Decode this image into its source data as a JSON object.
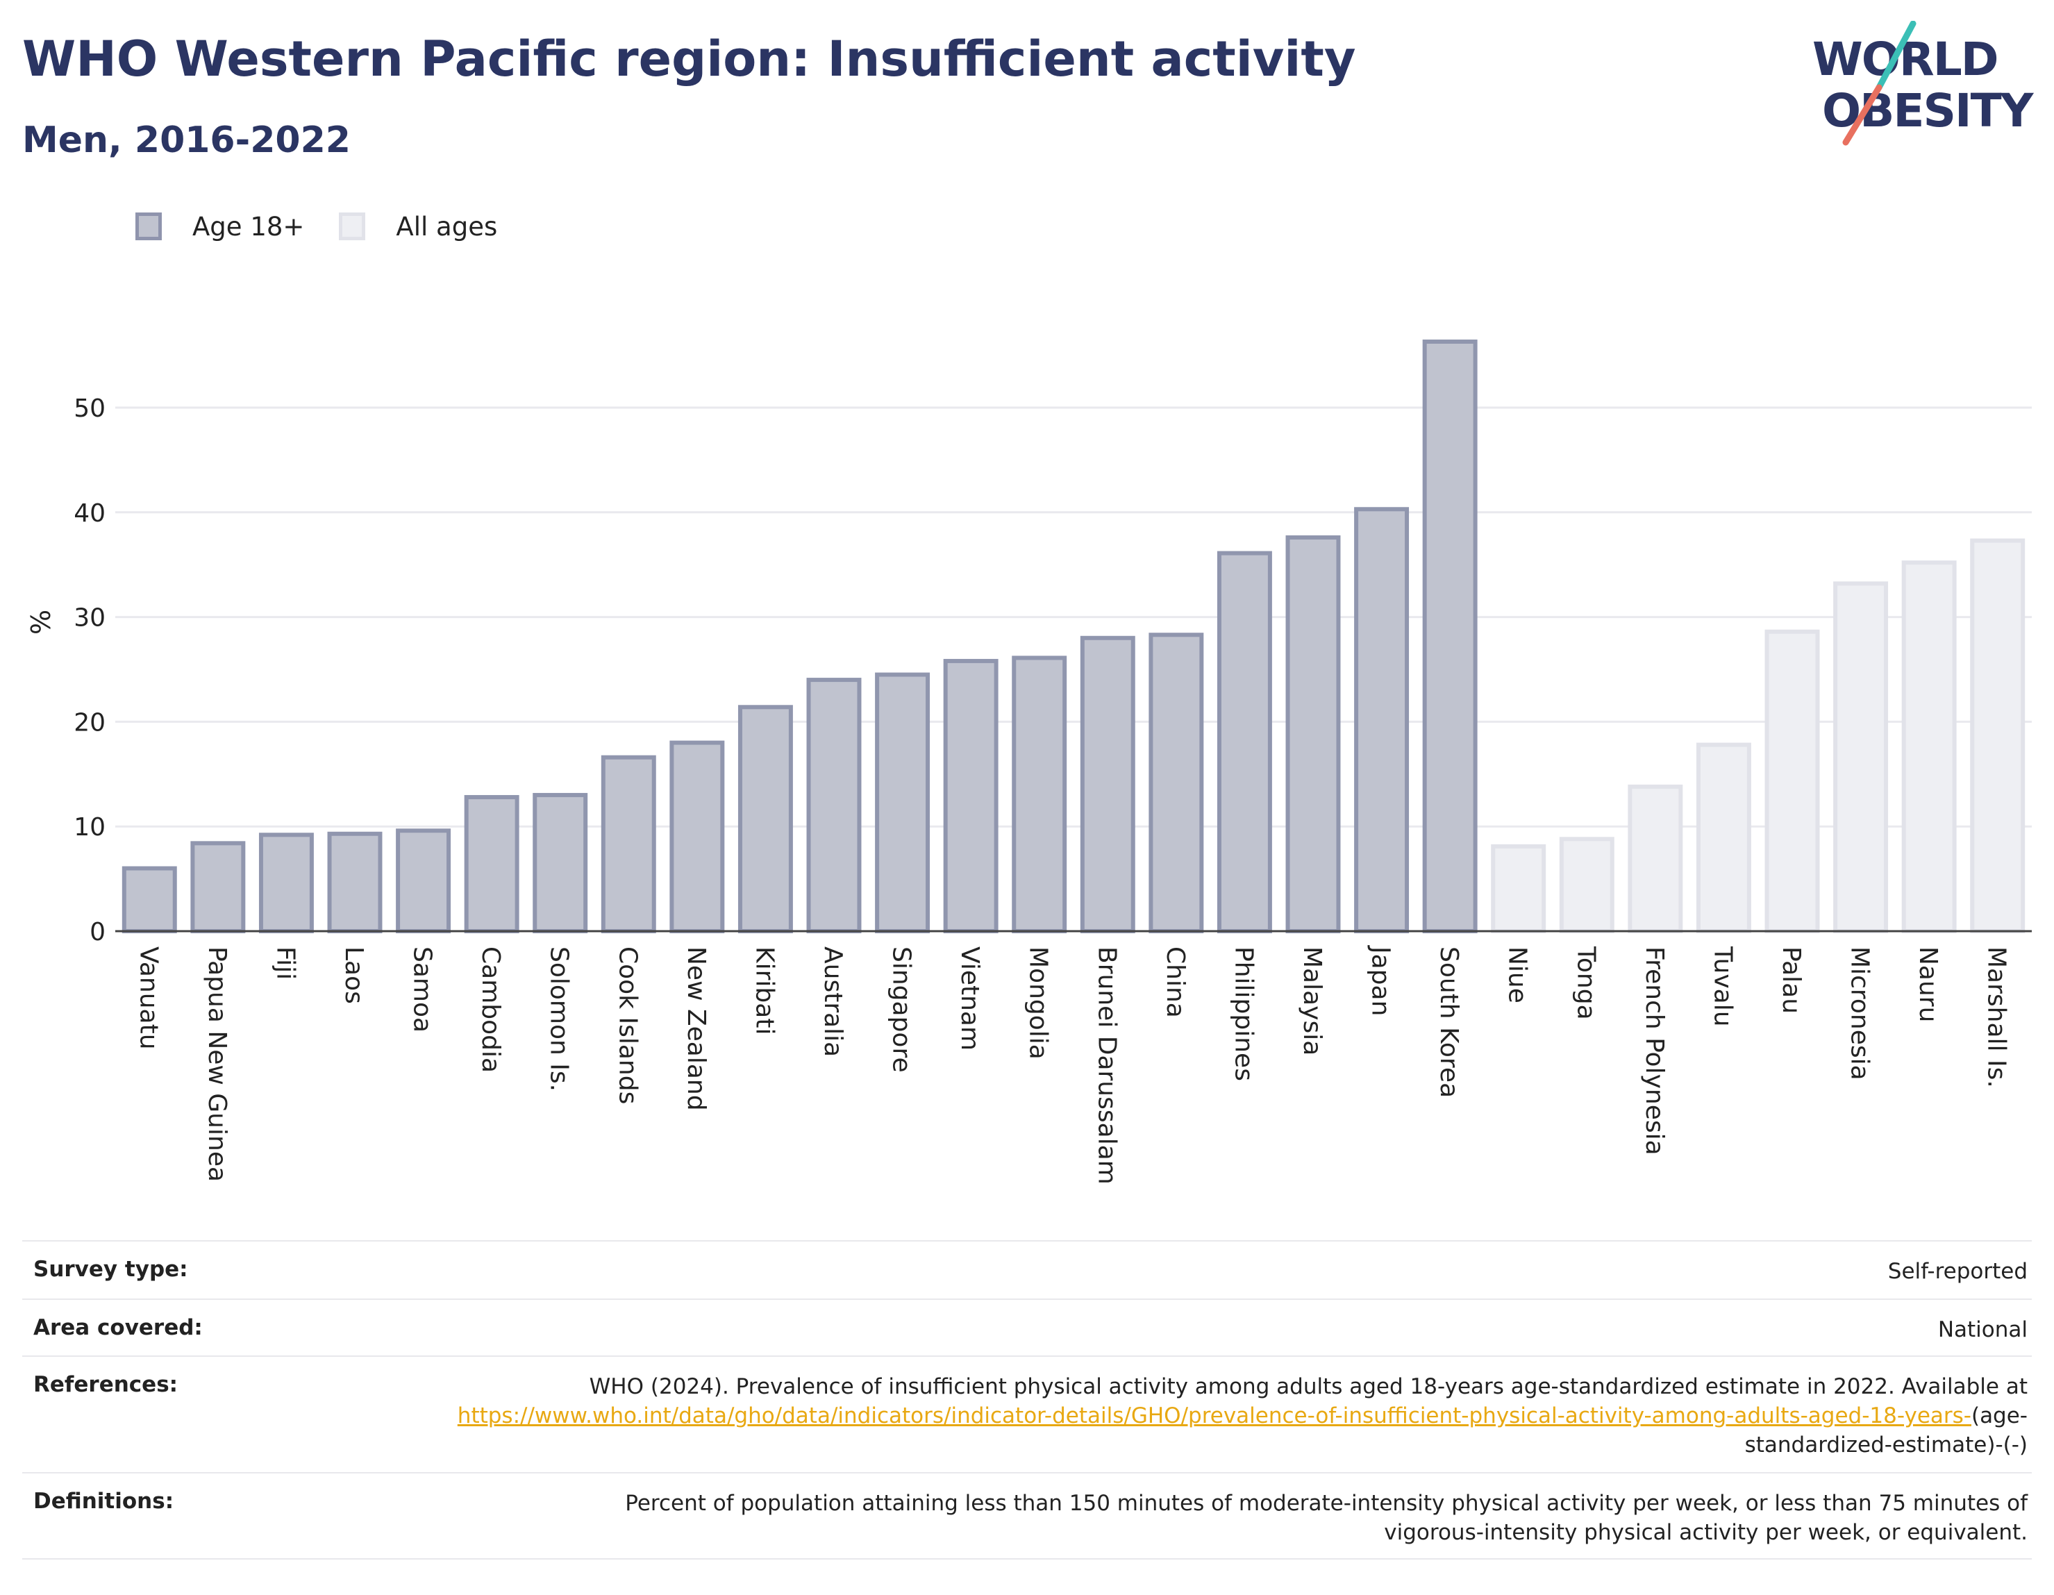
{
  "header": {
    "title": "WHO Western Pacific region: Insufficient activity",
    "subtitle": "Men, 2016-2022"
  },
  "logo": {
    "line1": "WORLD",
    "line2": "OBESITY",
    "colors": {
      "text": "#2b3563",
      "slash_top": "#3bbfb6",
      "slash_bottom": "#e8705f"
    }
  },
  "legend": {
    "items": [
      {
        "label": "Age 18+",
        "series": "age18"
      },
      {
        "label": "All ages",
        "series": "allages"
      }
    ]
  },
  "chart_data": {
    "type": "bar",
    "ylabel": "%",
    "ylim": [
      0,
      57
    ],
    "yticks": [
      0,
      10,
      20,
      30,
      40,
      50
    ],
    "grid": true,
    "legend_position": "top-left",
    "colors": {
      "age18_fill": "#c0c3cf",
      "age18_stroke": "#9096ae",
      "allages_fill": "#eeeff3",
      "allages_stroke": "#e1e2e9",
      "axis": "#444444",
      "grid": "#e9e9ee"
    },
    "bars": [
      {
        "category": "Vanuatu",
        "value": 6.0,
        "series": "age18"
      },
      {
        "category": "Papua New Guinea",
        "value": 8.4,
        "series": "age18"
      },
      {
        "category": "Fiji",
        "value": 9.2,
        "series": "age18"
      },
      {
        "category": "Laos",
        "value": 9.3,
        "series": "age18"
      },
      {
        "category": "Samoa",
        "value": 9.6,
        "series": "age18"
      },
      {
        "category": "Cambodia",
        "value": 12.8,
        "series": "age18"
      },
      {
        "category": "Solomon Is.",
        "value": 13.0,
        "series": "age18"
      },
      {
        "category": "Cook Islands",
        "value": 16.6,
        "series": "age18"
      },
      {
        "category": "New Zealand",
        "value": 18.0,
        "series": "age18"
      },
      {
        "category": "Kiribati",
        "value": 21.4,
        "series": "age18"
      },
      {
        "category": "Australia",
        "value": 24.0,
        "series": "age18"
      },
      {
        "category": "Singapore",
        "value": 24.5,
        "series": "age18"
      },
      {
        "category": "Vietnam",
        "value": 25.8,
        "series": "age18"
      },
      {
        "category": "Mongolia",
        "value": 26.1,
        "series": "age18"
      },
      {
        "category": "Brunei Darussalam",
        "value": 28.0,
        "series": "age18"
      },
      {
        "category": "China",
        "value": 28.3,
        "series": "age18"
      },
      {
        "category": "Philippines",
        "value": 36.1,
        "series": "age18"
      },
      {
        "category": "Malaysia",
        "value": 37.6,
        "series": "age18"
      },
      {
        "category": "Japan",
        "value": 40.3,
        "series": "age18"
      },
      {
        "category": "South Korea",
        "value": 56.3,
        "series": "age18"
      },
      {
        "category": "Niue",
        "value": 8.1,
        "series": "allages"
      },
      {
        "category": "Tonga",
        "value": 8.8,
        "series": "allages"
      },
      {
        "category": "French Polynesia",
        "value": 13.8,
        "series": "allages"
      },
      {
        "category": "Tuvalu",
        "value": 17.8,
        "series": "allages"
      },
      {
        "category": "Palau",
        "value": 28.6,
        "series": "allages"
      },
      {
        "category": "Micronesia",
        "value": 33.2,
        "series": "allages"
      },
      {
        "category": "Nauru",
        "value": 35.2,
        "series": "allages"
      },
      {
        "category": "Marshall Is.",
        "value": 37.3,
        "series": "allages"
      }
    ]
  },
  "info": {
    "survey_type": {
      "label": "Survey type:",
      "value": "Self-reported"
    },
    "area_covered": {
      "label": "Area covered:",
      "value": "National"
    },
    "references": {
      "label": "References:",
      "text": "WHO (2024). Prevalence of insufficient physical activity among adults aged 18-years age-standardized estimate in 2022. Available at",
      "link": "https://www.who.int/data/gho/data/indicators/indicator-details/GHO/prevalence-of-insufficient-physical-activity-among-adults-aged-18-years-",
      "suffix": "(age-standardized-estimate)-(-)"
    },
    "definitions": {
      "label": "Definitions:",
      "value": "Percent of population attaining less than 150 minutes of moderate-intensity physical activity per week, or less than 75 minutes of vigorous-intensity physical activity per week, or equivalent."
    }
  }
}
